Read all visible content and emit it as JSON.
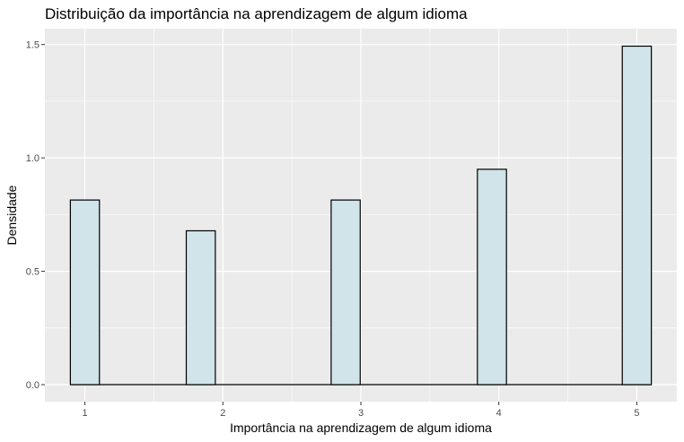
{
  "chart_data": {
    "type": "bar",
    "title": "Distribuição da importância na aprendizagem de algum idioma",
    "xlabel": "Importância na aprendizagem de algum idioma",
    "ylabel": "Densidade",
    "xlim": [
      0.71,
      5.29
    ],
    "ylim": [
      -0.075,
      1.57
    ],
    "x_ticks": [
      1,
      2,
      3,
      4,
      5
    ],
    "y_ticks": [
      0.0,
      0.5,
      1.0,
      1.5
    ],
    "x_tick_labels": [
      "1",
      "2",
      "3",
      "4",
      "5"
    ],
    "y_tick_labels": [
      "0.0",
      "0.5",
      "1.0",
      "1.5"
    ],
    "bin_width": 0.21053,
    "bins": [
      {
        "x": 1.0,
        "value": 0.8143
      },
      {
        "x": 1.84,
        "value": 0.6786
      },
      {
        "x": 2.89,
        "value": 0.8143
      },
      {
        "x": 3.95,
        "value": 0.95
      },
      {
        "x": 5.0,
        "value": 1.4929
      }
    ],
    "zero_baseline_range": [
      0.895,
      5.105
    ],
    "fill_color": "#d0e4ea",
    "stroke_color": "#000000",
    "panel_background": "#ebebeb",
    "grid_color": "#ffffff",
    "grid": true,
    "legend": "none"
  }
}
